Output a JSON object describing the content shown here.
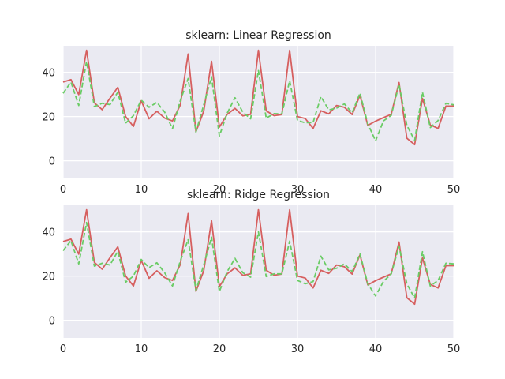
{
  "chart_data": [
    {
      "type": "line",
      "title": "sklearn: Linear Regression",
      "xlabel": "",
      "ylabel": "",
      "xlim": [
        0,
        50
      ],
      "ylim": [
        -8,
        52
      ],
      "xticks": [
        0,
        10,
        20,
        30,
        40,
        50
      ],
      "yticks": [
        0,
        20,
        40
      ],
      "grid": true,
      "x": [
        0,
        1,
        2,
        3,
        4,
        5,
        6,
        7,
        8,
        9,
        10,
        11,
        12,
        13,
        14,
        15,
        16,
        17,
        18,
        19,
        20,
        21,
        22,
        23,
        24,
        25,
        26,
        27,
        28,
        29,
        30,
        31,
        32,
        33,
        34,
        35,
        36,
        37,
        38,
        39,
        40,
        41,
        42,
        43,
        44,
        45,
        46,
        47,
        48,
        49,
        50
      ],
      "series": [
        {
          "color": "#d65f5f",
          "style": "solid",
          "values": [
            35.6,
            36.7,
            29.9,
            50.0,
            26.2,
            23.1,
            28.3,
            33.2,
            20.0,
            15.5,
            27.1,
            19.0,
            22.4,
            19.3,
            18.0,
            25.2,
            48.3,
            13.1,
            22.4,
            45.0,
            15.2,
            21.0,
            23.7,
            20.3,
            21.0,
            50.0,
            22.6,
            20.4,
            20.9,
            50.0,
            20.0,
            19.1,
            14.6,
            22.6,
            21.2,
            25.0,
            24.2,
            20.9,
            29.6,
            16.0,
            17.9,
            19.5,
            21.0,
            35.4,
            10.2,
            7.3,
            28.2,
            16.2,
            14.6,
            24.7,
            24.7
          ]
        },
        {
          "color": "#6acc65",
          "style": "dashed",
          "values": [
            30.5,
            35.6,
            25.0,
            44.9,
            24.5,
            26.0,
            25.4,
            31.0,
            17.0,
            20.4,
            27.4,
            24.2,
            26.4,
            22.0,
            14.5,
            27.2,
            37.2,
            13.0,
            25.3,
            38.0,
            11.2,
            21.5,
            28.5,
            22.0,
            19.0,
            40.8,
            19.3,
            21.3,
            21.2,
            36.2,
            18.2,
            17.2,
            17.3,
            29.0,
            23.0,
            23.8,
            25.7,
            21.7,
            30.6,
            16.7,
            9.0,
            18.0,
            20.5,
            34.5,
            16.0,
            9.2,
            31.0,
            15.0,
            18.2,
            26.0,
            25.3
          ]
        }
      ]
    },
    {
      "type": "line",
      "title": "sklearn: Ridge Regression",
      "xlabel": "",
      "ylabel": "",
      "xlim": [
        0,
        50
      ],
      "ylim": [
        -8,
        52
      ],
      "xticks": [
        0,
        10,
        20,
        30,
        40,
        50
      ],
      "yticks": [
        0,
        20,
        40
      ],
      "grid": true,
      "x": [
        0,
        1,
        2,
        3,
        4,
        5,
        6,
        7,
        8,
        9,
        10,
        11,
        12,
        13,
        14,
        15,
        16,
        17,
        18,
        19,
        20,
        21,
        22,
        23,
        24,
        25,
        26,
        27,
        28,
        29,
        30,
        31,
        32,
        33,
        34,
        35,
        36,
        37,
        38,
        39,
        40,
        41,
        42,
        43,
        44,
        45,
        46,
        47,
        48,
        49,
        50
      ],
      "series": [
        {
          "color": "#d65f5f",
          "style": "solid",
          "values": [
            35.6,
            36.7,
            29.9,
            50.0,
            26.2,
            23.1,
            28.3,
            33.2,
            20.0,
            15.5,
            27.1,
            19.0,
            22.4,
            19.3,
            18.0,
            25.2,
            48.3,
            13.1,
            22.4,
            45.0,
            15.2,
            21.0,
            23.7,
            20.3,
            21.0,
            50.0,
            22.6,
            20.4,
            20.9,
            50.0,
            20.0,
            19.1,
            14.6,
            22.6,
            21.2,
            25.0,
            24.2,
            20.9,
            29.6,
            16.0,
            17.9,
            19.5,
            21.0,
            35.4,
            10.2,
            7.3,
            28.2,
            16.2,
            14.6,
            24.7,
            24.7
          ]
        },
        {
          "color": "#6acc65",
          "style": "dashed",
          "values": [
            31.5,
            36.0,
            25.5,
            44.2,
            24.5,
            25.8,
            25.0,
            31.2,
            17.2,
            20.0,
            27.5,
            23.8,
            26.0,
            21.5,
            15.5,
            26.8,
            36.4,
            13.5,
            25.0,
            37.6,
            13.0,
            22.0,
            28.0,
            21.5,
            19.5,
            40.0,
            19.8,
            21.0,
            21.0,
            35.8,
            18.0,
            16.5,
            17.5,
            29.0,
            22.8,
            23.5,
            25.5,
            22.0,
            30.0,
            16.5,
            11.0,
            17.5,
            21.0,
            33.5,
            16.5,
            10.0,
            31.0,
            15.5,
            18.0,
            25.8,
            25.5
          ]
        }
      ]
    }
  ]
}
